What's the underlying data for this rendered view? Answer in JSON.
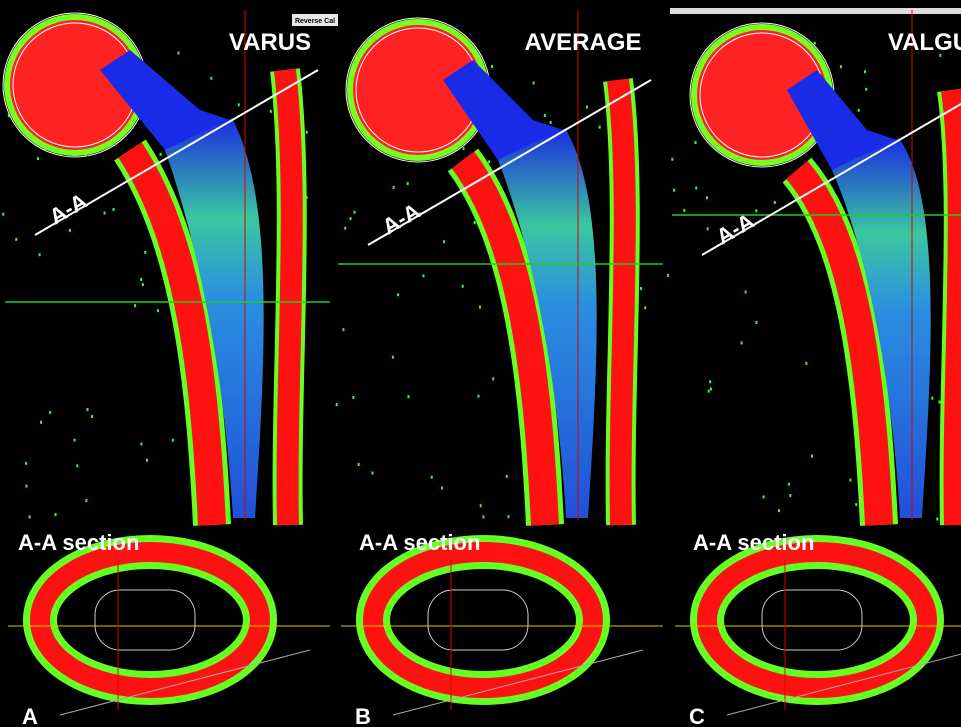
{
  "toolbar_label": "Reverse Cal",
  "panels": [
    {
      "title": "VARUS",
      "aa_label": "A-A",
      "section_label": "A-A section",
      "letter": "A"
    },
    {
      "title": "AVERAGE",
      "aa_label": "A-A",
      "section_label": "A-A section",
      "letter": "B"
    },
    {
      "title": "VALGUS",
      "aa_label": "A-A",
      "section_label": "A-A section",
      "letter": "C"
    }
  ]
}
